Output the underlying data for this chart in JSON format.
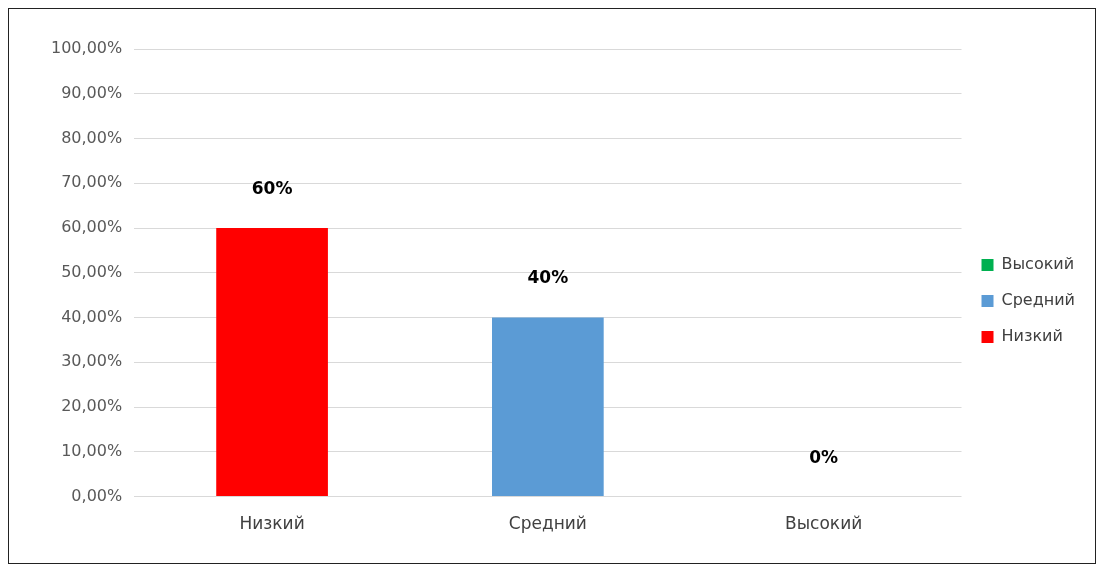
{
  "chart_data": {
    "type": "bar",
    "categories": [
      "Низкий",
      "Средний",
      "Высокий"
    ],
    "series": [
      {
        "name": "Низкий",
        "color": "#ff0000",
        "values": [
          60,
          null,
          null
        ],
        "value_labels": [
          "60%",
          null,
          null
        ]
      },
      {
        "name": "Средний",
        "color": "#5b9bd5",
        "values": [
          null,
          40,
          null
        ],
        "value_labels": [
          null,
          "40%",
          null
        ]
      },
      {
        "name": "Высокий",
        "color": "#00b050",
        "values": [
          null,
          null,
          0
        ],
        "value_labels": [
          null,
          null,
          "0%"
        ]
      }
    ],
    "ylim": [
      0,
      100
    ],
    "yticks": [
      {
        "value": 0,
        "label": "0,00%"
      },
      {
        "value": 10,
        "label": "10,00%"
      },
      {
        "value": 20,
        "label": "20,00%"
      },
      {
        "value": 30,
        "label": "30,00%"
      },
      {
        "value": 40,
        "label": "40,00%"
      },
      {
        "value": 50,
        "label": "50,00%"
      },
      {
        "value": 60,
        "label": "60,00%"
      },
      {
        "value": 70,
        "label": "70,00%"
      },
      {
        "value": 80,
        "label": "80,00%"
      },
      {
        "value": 90,
        "label": "90,00%"
      },
      {
        "value": 100,
        "label": "100,00%"
      }
    ],
    "grid": "y",
    "legend": "right"
  }
}
